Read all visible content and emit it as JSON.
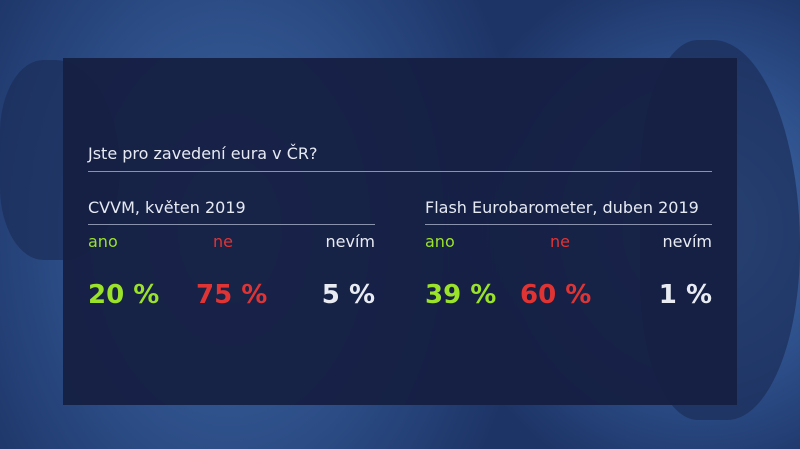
{
  "title": "Jste pro zavedení eura v ČR?",
  "colors": {
    "yes": "#9be22a",
    "no": "#e03434",
    "unknown": "#e8ecf2"
  },
  "surveys": [
    {
      "source": "CVVM, květen 2019",
      "labels": [
        "ano",
        "ne",
        "nevím"
      ],
      "values": [
        "20 %",
        "75 %",
        "5 %"
      ]
    },
    {
      "source": "Flash Eurobarometer, duben 2019",
      "labels": [
        "ano",
        "ne",
        "nevím"
      ],
      "values": [
        "39 %",
        "60 %",
        "1 %"
      ]
    }
  ]
}
